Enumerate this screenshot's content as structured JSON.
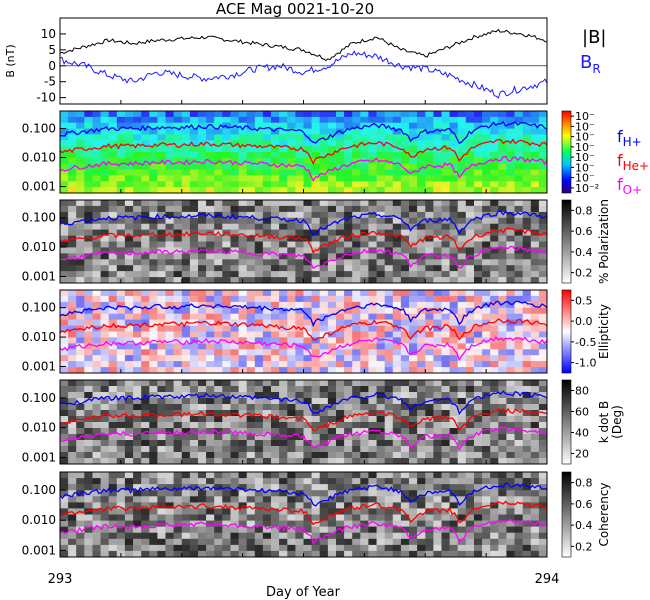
{
  "title": "ACE Mag 0021-10-20",
  "colors": {
    "B_total": "#000000",
    "B_R": "#1a1aff",
    "f_H": "#0000ff",
    "f_He": "#ff0000",
    "f_O": "#ff00ff"
  },
  "legend": {
    "B_total": "|B|",
    "B_R": "B",
    "B_R_sub": "R",
    "f_H": "f",
    "f_H_sub": "H+",
    "f_He": "f",
    "f_He_sub": "He+",
    "f_O": "f",
    "f_O_sub": "O+"
  },
  "chart_data": [
    {
      "type": "line",
      "panel": "magnetic field",
      "ylabel": "B (nT)",
      "ylim": [
        -12,
        15
      ],
      "yticks": [
        -10,
        -5,
        0,
        5,
        10
      ],
      "x_range": [
        293,
        294
      ],
      "series": [
        {
          "name": "|B|",
          "color": "#000000",
          "x": [
            293.0,
            293.05,
            293.1,
            293.15,
            293.2,
            293.25,
            293.3,
            293.35,
            293.4,
            293.45,
            293.5,
            293.55,
            293.6,
            293.65,
            293.7,
            293.75,
            293.8,
            293.85,
            293.9,
            293.95,
            294.0
          ],
          "y": [
            4,
            6,
            8,
            7,
            8,
            8.5,
            9,
            8,
            7,
            6,
            5,
            2,
            7,
            9,
            5,
            3,
            6,
            9,
            11,
            10,
            8
          ]
        },
        {
          "name": "B_R",
          "color": "#1a1aff",
          "x": [
            293.0,
            293.05,
            293.1,
            293.15,
            293.2,
            293.25,
            293.3,
            293.35,
            293.4,
            293.45,
            293.5,
            293.55,
            293.6,
            293.65,
            293.7,
            293.75,
            293.8,
            293.85,
            293.9,
            293.95,
            294.0
          ],
          "y": [
            2,
            0,
            -3,
            -5,
            -2,
            -3,
            -4,
            -3,
            -1,
            0,
            -2,
            0,
            4,
            3,
            0,
            -1,
            -3,
            -6,
            -9,
            -7,
            -5
          ]
        }
      ]
    },
    {
      "type": "heatmap",
      "panel": "power spectrum",
      "yscale": "log",
      "ylim": [
        0.0006,
        0.4
      ],
      "yticks": [
        "0.001",
        "0.010",
        "0.100"
      ],
      "colorbar_label": "",
      "colorbar_ticks": [
        "10⁻²",
        "10⁻",
        "10⁻",
        "10⁻",
        "10⁻",
        "10⁻",
        "10⁻",
        "10⁻"
      ],
      "lines": [
        "f_H+",
        "f_He+",
        "f_O+"
      ]
    },
    {
      "type": "heatmap",
      "panel": "polarization",
      "yscale": "log",
      "ylim": [
        0.0006,
        0.4
      ],
      "yticks": [
        "0.001",
        "0.010",
        "0.100"
      ],
      "colorbar_label": "% Polarization",
      "colorbar_ticks": [
        "0.2",
        "0.4",
        "0.6",
        "0.8"
      ],
      "lines": [
        "f_H+",
        "f_He+",
        "f_O+"
      ]
    },
    {
      "type": "heatmap",
      "panel": "ellipticity",
      "yscale": "log",
      "ylim": [
        0.0006,
        0.4
      ],
      "yticks": [
        "0.001",
        "0.010",
        "0.100"
      ],
      "colorbar_label": "Ellipticity",
      "colorbar_ticks": [
        "-1.0",
        "-0.5",
        "0.0",
        "0.5"
      ],
      "lines": [
        "f_H+",
        "f_He+",
        "f_O+"
      ]
    },
    {
      "type": "heatmap",
      "panel": "wave normal angle",
      "yscale": "log",
      "ylim": [
        0.0006,
        0.4
      ],
      "yticks": [
        "0.001",
        "0.010",
        "0.100"
      ],
      "colorbar_label": "k dot B",
      "colorbar_label2": "(Deg)",
      "colorbar_ticks": [
        "20",
        "40",
        "60",
        "80"
      ],
      "lines": [
        "f_H+",
        "f_He+",
        "f_O+"
      ]
    },
    {
      "type": "heatmap",
      "panel": "coherency",
      "yscale": "log",
      "ylim": [
        0.0006,
        0.4
      ],
      "yticks": [
        "0.001",
        "0.010",
        "0.100"
      ],
      "colorbar_label": "Coherency",
      "colorbar_ticks": [
        "0.2",
        "0.4",
        "0.6",
        "0.8"
      ],
      "lines": [
        "f_H+",
        "f_He+",
        "f_O+"
      ]
    }
  ],
  "gyro_lines": {
    "x": [
      293.0,
      293.05,
      293.1,
      293.15,
      293.2,
      293.25,
      293.3,
      293.35,
      293.4,
      293.45,
      293.5,
      293.52,
      293.55,
      293.6,
      293.65,
      293.7,
      293.72,
      293.75,
      293.8,
      293.82,
      293.85,
      293.9,
      293.95,
      294.0
    ],
    "f_H": [
      0.06,
      0.08,
      0.1,
      0.1,
      0.11,
      0.11,
      0.12,
      0.11,
      0.1,
      0.09,
      0.08,
      0.03,
      0.05,
      0.1,
      0.13,
      0.09,
      0.04,
      0.08,
      0.09,
      0.03,
      0.09,
      0.15,
      0.14,
      0.11
    ]
  },
  "x_axis": {
    "label": "Day of Year",
    "ticks": [
      "293",
      "294"
    ],
    "range": [
      293,
      294
    ]
  }
}
